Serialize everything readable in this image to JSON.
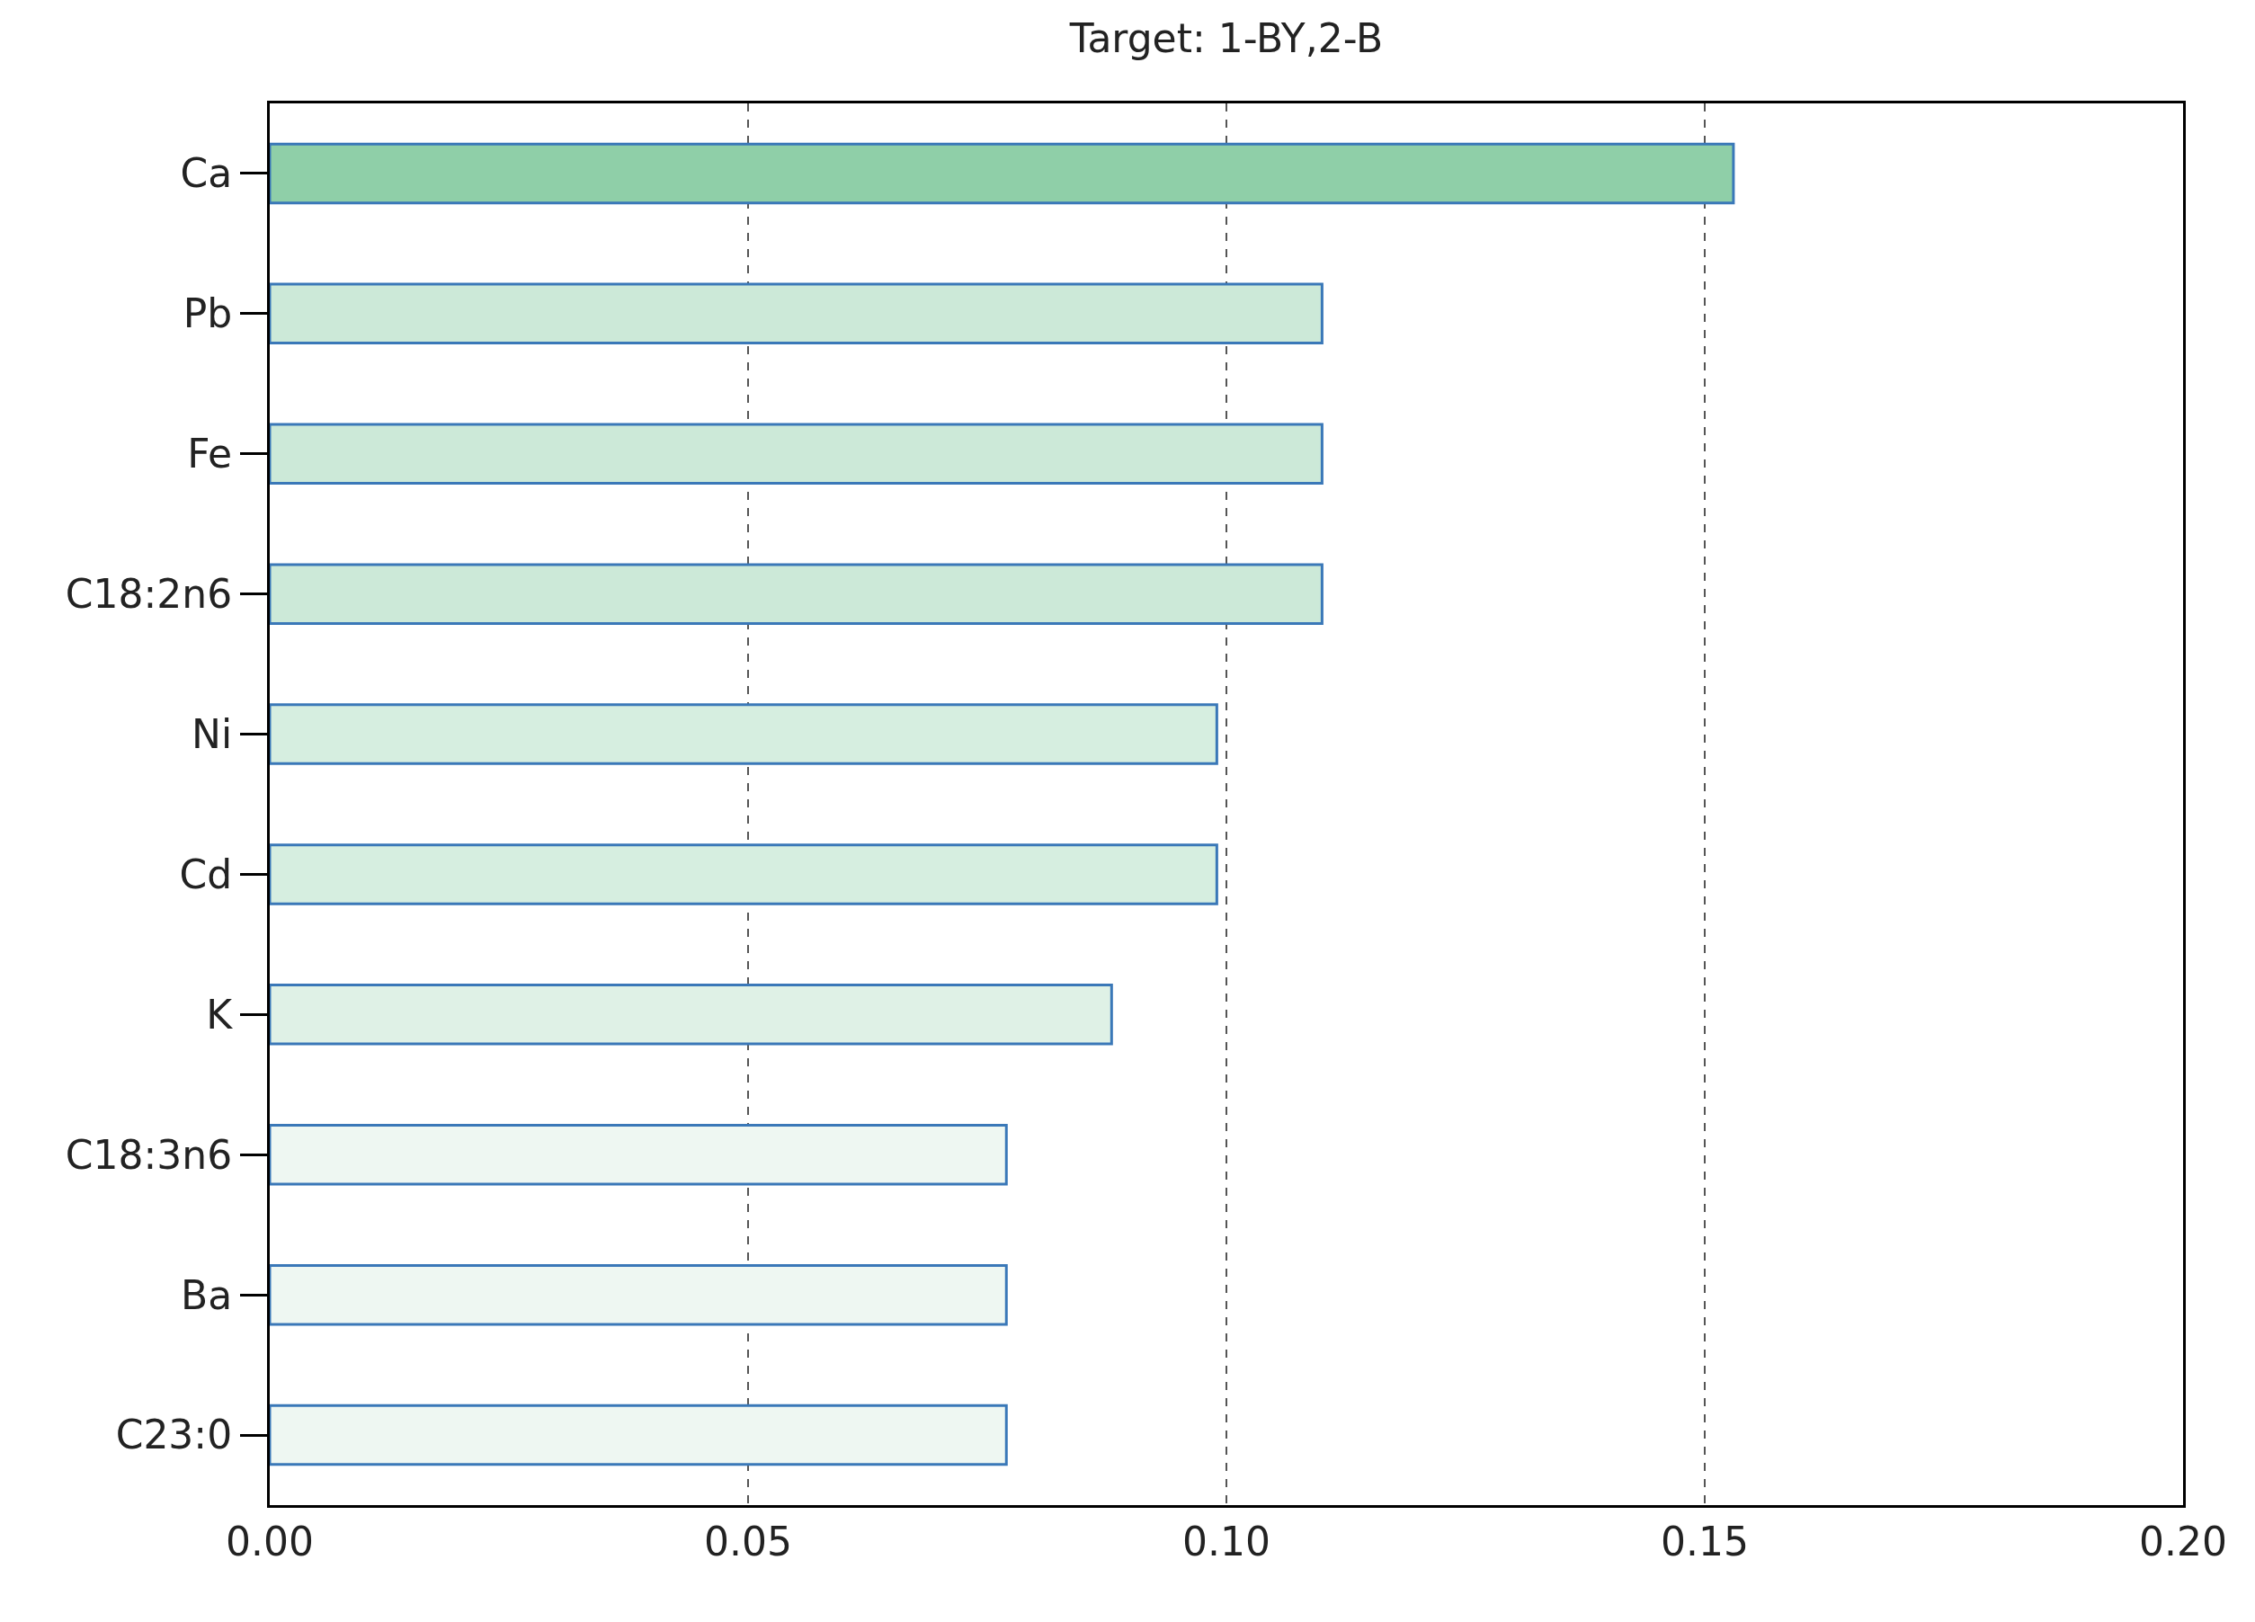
{
  "chart_data": {
    "type": "bar",
    "orientation": "horizontal",
    "title": "Target: 1-BY,2-B",
    "categories": [
      "Ca",
      "Pb",
      "Fe",
      "C18:2n6",
      "Ni",
      "Cd",
      "K",
      "C18:3n6",
      "Ba",
      "C23:0"
    ],
    "values": [
      0.153,
      0.11,
      0.11,
      0.11,
      0.099,
      0.099,
      0.088,
      0.077,
      0.077,
      0.077
    ],
    "colors": [
      "#8fcfa8",
      "#cce9d8",
      "#cce9d8",
      "#cce9d8",
      "#d6eee0",
      "#d6eee0",
      "#dff1e6",
      "#eef7f2",
      "#eef7f2",
      "#eef7f2"
    ],
    "xlim": [
      0,
      0.2
    ],
    "xticks": [
      {
        "value": 0,
        "label": "0.00"
      },
      0.05,
      {
        "value": 0.1,
        "label": "0.10"
      },
      0.15,
      {
        "value": 0.2,
        "label": "0.20"
      }
    ],
    "grid": "x"
  }
}
